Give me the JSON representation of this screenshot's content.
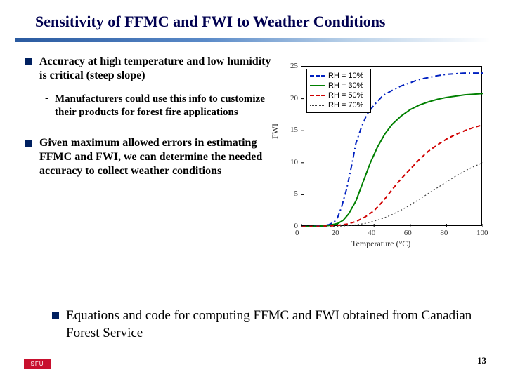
{
  "title": "Sensitivity of FFMC and FWI to Weather Conditions",
  "bullets": {
    "b1": "Accuracy at high temperature and low humidity is critical (steep slope)",
    "b1_sub": "Manufacturers could use this info to customize their products for forest fire applications",
    "b2": "Given maximum allowed errors in estimating FFMC and FWI, we can determine the needed accuracy to collect weather conditions",
    "b3": "Equations and code for computing FFMC and FWI obtained from Canadian Forest Service"
  },
  "chart": {
    "type": "line",
    "xlabel": "Temperature (°C)",
    "ylabel": "FWI",
    "xlim": [
      0,
      100
    ],
    "ylim": [
      0,
      25
    ],
    "xticks": [
      0,
      20,
      40,
      60,
      80,
      100
    ],
    "yticks": [
      0,
      5,
      10,
      15,
      20,
      25
    ],
    "box_color": "#000000",
    "background": "#ffffff",
    "legend": {
      "border": "#000000",
      "items": [
        {
          "label": "RH = 10%",
          "color": "#0020c0",
          "dash": "8,4,2,4",
          "width": 2
        },
        {
          "label": "RH = 30%",
          "color": "#008000",
          "dash": "none",
          "width": 2
        },
        {
          "label": "RH = 50%",
          "color": "#d00000",
          "dash": "6,4",
          "width": 2
        },
        {
          "label": "RH = 70%",
          "color": "#404040",
          "dash": "2,3",
          "width": 1.2
        }
      ]
    },
    "series": [
      {
        "name": "RH10",
        "color": "#0020c0",
        "dash": "8,4,2,4",
        "width": 2,
        "x": [
          0,
          5,
          10,
          15,
          18,
          20,
          22,
          25,
          28,
          30,
          33,
          36,
          40,
          45,
          50,
          55,
          60,
          65,
          70,
          75,
          80,
          85,
          90,
          95,
          100
        ],
        "y": [
          0.0,
          0.05,
          0.12,
          0.3,
          0.7,
          1.5,
          3.0,
          6.0,
          10.0,
          13.0,
          15.5,
          17.5,
          19.0,
          20.5,
          21.3,
          22.0,
          22.5,
          23.0,
          23.3,
          23.6,
          23.8,
          23.9,
          24.0,
          24.0,
          24.0
        ]
      },
      {
        "name": "RH30",
        "color": "#008000",
        "dash": "none",
        "width": 2,
        "x": [
          0,
          5,
          10,
          15,
          20,
          23,
          26,
          30,
          34,
          38,
          42,
          46,
          50,
          55,
          60,
          65,
          70,
          75,
          80,
          85,
          90,
          95,
          100
        ],
        "y": [
          0.0,
          0.03,
          0.08,
          0.18,
          0.5,
          1.0,
          2.0,
          4.0,
          7.0,
          10.0,
          12.5,
          14.5,
          16.0,
          17.3,
          18.3,
          19.0,
          19.5,
          19.9,
          20.2,
          20.4,
          20.6,
          20.7,
          20.8
        ]
      },
      {
        "name": "RH50",
        "color": "#d00000",
        "dash": "6,4",
        "width": 2,
        "x": [
          0,
          5,
          10,
          15,
          20,
          25,
          30,
          35,
          40,
          45,
          50,
          55,
          60,
          65,
          70,
          75,
          80,
          85,
          90,
          95,
          100
        ],
        "y": [
          0.0,
          0.02,
          0.05,
          0.1,
          0.2,
          0.4,
          0.8,
          1.5,
          2.5,
          4.0,
          5.8,
          7.5,
          9.0,
          10.5,
          11.8,
          12.8,
          13.7,
          14.4,
          15.0,
          15.5,
          15.9
        ]
      },
      {
        "name": "RH70",
        "color": "#404040",
        "dash": "2,3",
        "width": 1.2,
        "x": [
          0,
          5,
          10,
          15,
          20,
          25,
          30,
          35,
          40,
          45,
          50,
          55,
          60,
          65,
          70,
          75,
          80,
          85,
          90,
          95,
          100
        ],
        "y": [
          0.0,
          0.01,
          0.02,
          0.04,
          0.08,
          0.15,
          0.28,
          0.5,
          0.85,
          1.3,
          1.9,
          2.6,
          3.4,
          4.3,
          5.2,
          6.1,
          7.0,
          7.9,
          8.7,
          9.4,
          10.0
        ]
      }
    ]
  },
  "page_number": "13",
  "logo_text": "SFU",
  "colors": {
    "title": "#000050",
    "rule_start": "#2a5aa0",
    "bullet_square": "#002060",
    "sfu_bg": "#c8102e"
  }
}
